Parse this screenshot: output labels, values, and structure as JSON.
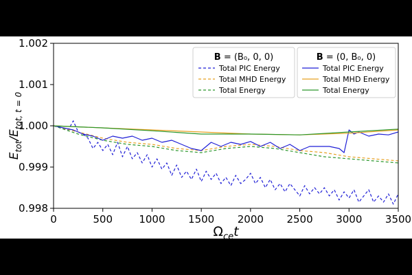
{
  "chart_data": {
    "type": "line",
    "xlabel": "Ω_ce t",
    "ylabel": "E_tot / E_tot, t = 0",
    "xlim": [
      0,
      3500
    ],
    "ylim": [
      0.998,
      1.002
    ],
    "xticks": [
      0,
      500,
      1000,
      1500,
      2000,
      2500,
      3000,
      3500
    ],
    "xtick_labels": [
      "0",
      "500",
      "1000",
      "1500",
      "2000",
      "2500",
      "3000",
      "3500"
    ],
    "yticks": [
      0.998,
      0.999,
      1.0,
      1.001,
      1.002
    ],
    "ytick_labels": [
      "0.998",
      "0.999",
      "1.000",
      "1.001",
      "1.002"
    ],
    "legends": [
      {
        "title_bold": "B",
        "title_rest": " = (B₀, 0, 0)",
        "entries": [
          "Total PIC Energy",
          "Total MHD Energy",
          "Total Energy"
        ]
      },
      {
        "title_bold": "B",
        "title_rest": " = (0, B₀, 0)",
        "entries": [
          "Total PIC Energy",
          "Total MHD Energy",
          "Total Energy"
        ]
      }
    ],
    "series": [
      {
        "name": "Total PIC Energy",
        "group": "B = (B0, 0, 0)",
        "color": "#1f1fd6",
        "dash": "dashed",
        "x": [
          0,
          100,
          150,
          200,
          250,
          300,
          350,
          400,
          450,
          500,
          550,
          600,
          650,
          700,
          750,
          800,
          850,
          900,
          950,
          1000,
          1050,
          1100,
          1150,
          1200,
          1250,
          1300,
          1350,
          1400,
          1450,
          1500,
          1550,
          1600,
          1650,
          1700,
          1750,
          1800,
          1850,
          1900,
          1950,
          2000,
          2050,
          2100,
          2150,
          2200,
          2250,
          2300,
          2350,
          2400,
          2450,
          2500,
          2550,
          2600,
          2650,
          2700,
          2750,
          2800,
          2850,
          2900,
          2950,
          3000,
          3050,
          3100,
          3150,
          3200,
          3250,
          3300,
          3350,
          3400,
          3450,
          3500
        ],
        "values": [
          1.0,
          0.99995,
          0.9999,
          1.00012,
          0.99985,
          0.9998,
          0.9997,
          0.99945,
          0.9996,
          0.9994,
          0.99955,
          0.9993,
          0.9996,
          0.99925,
          0.9995,
          0.9992,
          0.99935,
          0.9991,
          0.9993,
          0.999,
          0.9992,
          0.99895,
          0.9991,
          0.9988,
          0.99905,
          0.99875,
          0.9989,
          0.9987,
          0.99895,
          0.99865,
          0.9989,
          0.9987,
          0.99885,
          0.9986,
          0.99875,
          0.99855,
          0.9988,
          0.9986,
          0.9987,
          0.99885,
          0.9986,
          0.99875,
          0.9985,
          0.9987,
          0.99845,
          0.9986,
          0.9984,
          0.9986,
          0.99845,
          0.9983,
          0.99855,
          0.99835,
          0.9985,
          0.99835,
          0.9985,
          0.9983,
          0.99845,
          0.9982,
          0.9984,
          0.99825,
          0.99845,
          0.99815,
          0.9983,
          0.99845,
          0.99815,
          0.9983,
          0.99815,
          0.99835,
          0.9981,
          0.99835
        ]
      },
      {
        "name": "Total MHD Energy",
        "group": "B = (B0, 0, 0)",
        "color": "#e6a020",
        "dash": "dashed",
        "x": [
          0,
          250,
          500,
          750,
          1000,
          1250,
          1500,
          1750,
          2000,
          2250,
          2500,
          2750,
          3000,
          3250,
          3500
        ],
        "values": [
          1.0,
          0.99985,
          0.9997,
          0.9996,
          0.99955,
          0.99945,
          0.9994,
          0.9995,
          0.99955,
          0.9995,
          0.9994,
          0.99935,
          0.99925,
          0.9992,
          0.99915
        ]
      },
      {
        "name": "Total Energy",
        "group": "B = (B0, 0, 0)",
        "color": "#2a962a",
        "dash": "dashed",
        "x": [
          0,
          250,
          500,
          750,
          1000,
          1250,
          1500,
          1750,
          2000,
          2250,
          2500,
          2750,
          3000,
          3250,
          3500
        ],
        "values": [
          1.0,
          0.9998,
          0.99965,
          0.99955,
          0.9995,
          0.9994,
          0.99935,
          0.99945,
          0.9995,
          0.99945,
          0.99935,
          0.99925,
          0.9992,
          0.99915,
          0.9991
        ]
      },
      {
        "name": "Total PIC Energy",
        "group": "B = (0, B0, 0)",
        "color": "#1f1fd6",
        "dash": "solid",
        "x": [
          0,
          100,
          200,
          300,
          400,
          500,
          600,
          700,
          800,
          900,
          1000,
          1100,
          1200,
          1300,
          1400,
          1500,
          1600,
          1700,
          1800,
          1900,
          2000,
          2100,
          2200,
          2300,
          2400,
          2500,
          2600,
          2700,
          2800,
          2900,
          2950,
          3000,
          3050,
          3100,
          3200,
          3300,
          3400,
          3500
        ],
        "values": [
          1.0,
          0.99995,
          0.9999,
          0.9998,
          0.99975,
          0.99965,
          0.99975,
          0.9997,
          0.99975,
          0.99965,
          0.9997,
          0.9996,
          0.99965,
          0.99955,
          0.99945,
          0.9994,
          0.9996,
          0.9995,
          0.9996,
          0.99955,
          0.99962,
          0.9995,
          0.9996,
          0.99945,
          0.99955,
          0.9994,
          0.9995,
          0.9995,
          0.9995,
          0.99945,
          0.99935,
          0.9999,
          0.9998,
          0.99985,
          0.99975,
          0.9998,
          0.99978,
          0.99985
        ]
      },
      {
        "name": "Total MHD Energy",
        "group": "B = (0, B0, 0)",
        "color": "#e6a020",
        "dash": "solid",
        "x": [
          0,
          500,
          1000,
          1500,
          2000,
          2500,
          3000,
          3500
        ],
        "values": [
          1.0,
          0.99995,
          0.9999,
          0.99985,
          0.9998,
          0.99978,
          0.99982,
          0.9999
        ]
      },
      {
        "name": "Total Energy",
        "group": "B = (0, B0, 0)",
        "color": "#2a962a",
        "dash": "solid",
        "x": [
          0,
          500,
          1000,
          1500,
          2000,
          2500,
          3000,
          3500
        ],
        "values": [
          1.0,
          0.99995,
          0.99988,
          0.9998,
          0.9998,
          0.99978,
          0.99985,
          0.99992
        ]
      }
    ]
  }
}
